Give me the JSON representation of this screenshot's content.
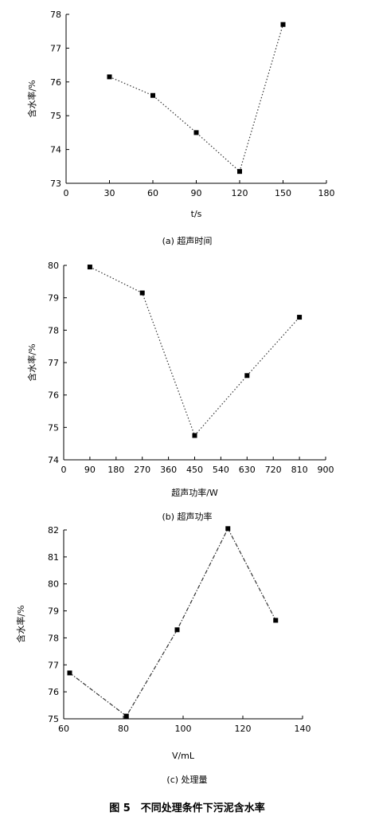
{
  "figure_caption": "图 5　不同处理条件下污泥含水率",
  "chart_data": [
    {
      "type": "line",
      "xlabel": "t/s",
      "ylabel": "含水率/%",
      "caption": "(a) 超声时间",
      "xlim": [
        0,
        180
      ],
      "ylim": [
        73,
        78
      ],
      "xticks": [
        0,
        30,
        60,
        90,
        120,
        150,
        180
      ],
      "yticks": [
        73,
        74,
        75,
        76,
        77,
        78
      ],
      "x": [
        30,
        60,
        90,
        120,
        150
      ],
      "y": [
        76.15,
        75.6,
        74.5,
        73.35,
        77.7
      ]
    },
    {
      "type": "line",
      "xlabel": "超声功率/W",
      "ylabel": "含水率/%",
      "caption": "(b) 超声功率",
      "xlim": [
        0,
        900
      ],
      "ylim": [
        74,
        80
      ],
      "xticks": [
        0,
        90,
        180,
        270,
        360,
        450,
        540,
        630,
        720,
        810,
        900
      ],
      "yticks": [
        74,
        75,
        76,
        77,
        78,
        79,
        80
      ],
      "x": [
        90,
        270,
        450,
        630,
        810
      ],
      "y": [
        79.95,
        79.15,
        74.75,
        76.6,
        78.4
      ]
    },
    {
      "type": "line",
      "xlabel": "V/mL",
      "ylabel": "含水率/%",
      "caption": "(c) 处理量",
      "xlim": [
        60,
        140
      ],
      "ylim": [
        75,
        82
      ],
      "xticks": [
        60,
        80,
        100,
        120,
        140
      ],
      "yticks": [
        75,
        76,
        77,
        78,
        79,
        80,
        81,
        82
      ],
      "x": [
        62,
        81,
        98,
        115,
        131
      ],
      "y": [
        76.7,
        75.1,
        78.3,
        82.05,
        78.65
      ]
    }
  ]
}
